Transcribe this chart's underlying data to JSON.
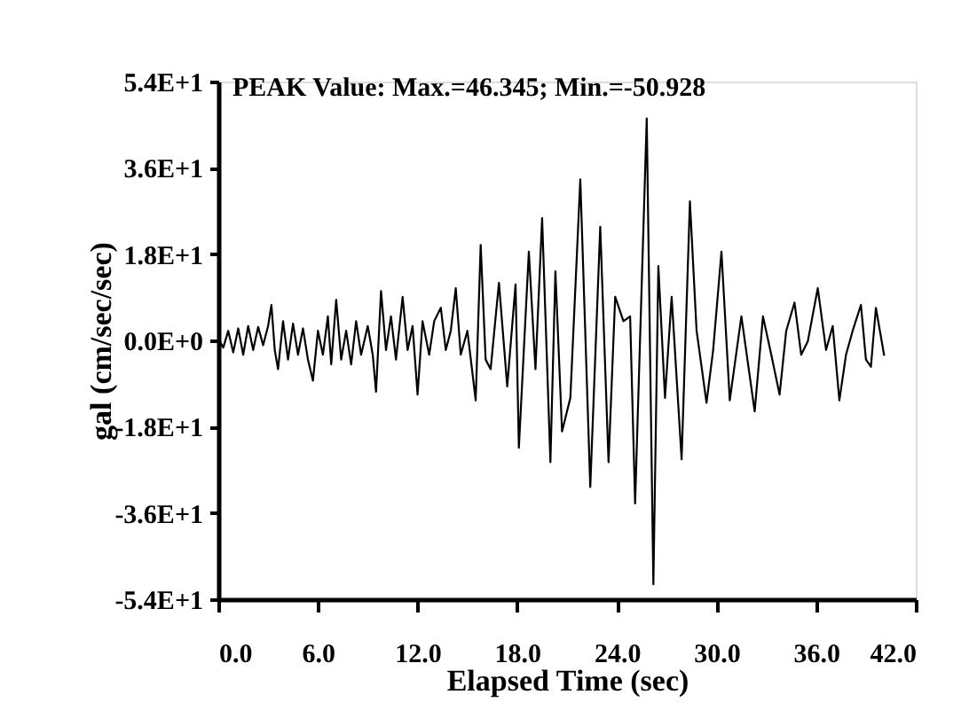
{
  "chart_data": {
    "type": "line",
    "title": "PEAK Value: Max.=46.345; Min.=-50.928",
    "xlabel": "Elapsed Time (sec)",
    "ylabel": "gal (cm/sec/sec)",
    "series": [
      {
        "color": "#000000",
        "x": [
          0,
          0.3,
          0.6,
          0.9,
          1.2,
          1.5,
          1.8,
          2.1,
          2.4,
          2.7,
          3.0,
          3.2,
          3.4,
          3.6,
          3.9,
          4.2,
          4.5,
          4.8,
          5.1,
          5.4,
          5.7,
          6.0,
          6.3,
          6.6,
          6.8,
          7.1,
          7.4,
          7.7,
          8.0,
          8.3,
          8.6,
          9.0,
          9.3,
          9.5,
          9.8,
          10.1,
          10.4,
          10.7,
          11.1,
          11.4,
          11.7,
          12.0,
          12.3,
          12.7,
          13.0,
          13.4,
          13.7,
          14.0,
          14.3,
          14.6,
          15.0,
          15.5,
          15.8,
          16.1,
          16.4,
          16.9,
          17.4,
          17.9,
          18.1,
          18.7,
          19.1,
          19.5,
          20.0,
          20.3,
          20.7,
          21.2,
          21.8,
          22.4,
          23.0,
          23.5,
          23.9,
          24.4,
          24.8,
          25.1,
          25.8,
          26.2,
          26.5,
          26.9,
          27.3,
          27.9,
          28.4,
          28.8,
          29.4,
          29.8,
          30.3,
          30.8,
          31.5,
          32.3,
          32.8,
          33.3,
          33.8,
          34.2,
          34.7,
          35.1,
          35.5,
          36.1,
          36.6,
          37.0,
          37.4,
          37.8,
          38.2,
          38.7,
          39.0,
          39.3,
          39.6,
          40.1
        ],
        "values": [
          0.3,
          -1.5,
          2,
          -2.5,
          2.5,
          -3,
          3,
          -2,
          2.8,
          -1,
          3,
          7.4,
          -2,
          -6,
          4,
          -4,
          3.5,
          -3,
          2.5,
          -4,
          -8.4,
          2,
          -3,
          5,
          -5,
          8.5,
          -4,
          2,
          -5,
          4,
          -3,
          3,
          -3,
          -10.7,
          10.3,
          -2,
          5,
          -4,
          9.1,
          -2,
          3,
          -11.3,
          4,
          -3,
          4,
          6.8,
          -2,
          2,
          10.9,
          -3,
          2,
          -12.5,
          19.9,
          -4,
          -6,
          12,
          -9.6,
          11.7,
          -22.4,
          18.5,
          -6,
          25.5,
          -25.4,
          14.4,
          -19,
          -12,
          33.6,
          -30.6,
          23.7,
          -25.4,
          9.1,
          4,
          5,
          -34,
          46.3,
          -50.9,
          15.5,
          -12,
          9.1,
          -24.8,
          29,
          2.1,
          -13,
          -2,
          18.5,
          -12.5,
          5,
          -14.8,
          5,
          -3,
          -11.3,
          2,
          7.9,
          -3,
          -0.2,
          10.9,
          -2,
          3,
          -12.5,
          -3,
          2,
          7.4,
          -4,
          -5.5,
          6.8,
          -3.2
        ]
      }
    ],
    "xlim": [
      0,
      42
    ],
    "xticks": [
      {
        "value": 0,
        "label": "0.0"
      },
      {
        "value": 6,
        "label": "6.0"
      },
      {
        "value": 12,
        "label": "12.0"
      },
      {
        "value": 18,
        "label": "18.0"
      },
      {
        "value": 24,
        "label": "24.0"
      },
      {
        "value": 30,
        "label": "30.0"
      },
      {
        "value": 36,
        "label": "36.0"
      },
      {
        "value": 42,
        "label": "42.0"
      }
    ],
    "ylim": [
      -54,
      54
    ],
    "yticks": [
      {
        "value": -54,
        "label": "-5.4E+1"
      },
      {
        "value": -36,
        "label": "-3.6E+1"
      },
      {
        "value": -18,
        "label": "-1.8E+1"
      },
      {
        "value": 0,
        "label": "0.0E+0"
      },
      {
        "value": 18,
        "label": "1.8E+1"
      },
      {
        "value": 36,
        "label": "3.6E+1"
      },
      {
        "value": 54,
        "label": "5.4E+1"
      }
    ],
    "grid": false,
    "marker": "none",
    "line_style": "solid"
  }
}
